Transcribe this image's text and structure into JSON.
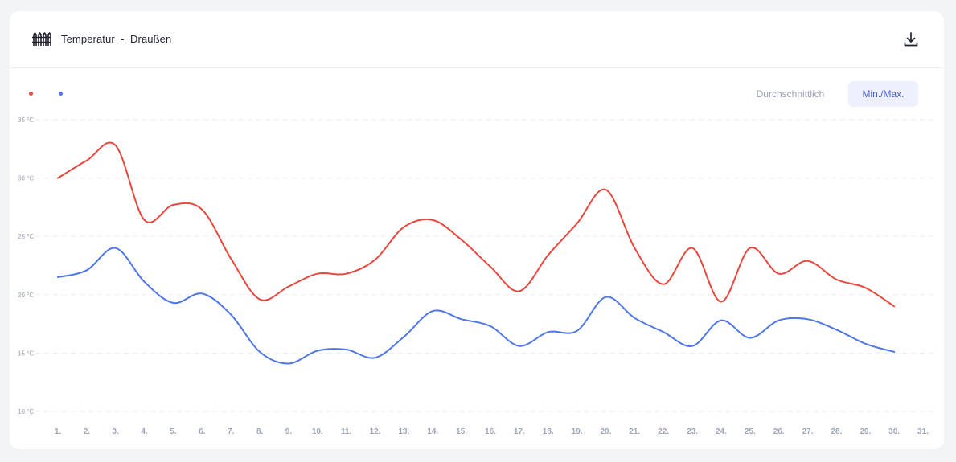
{
  "header": {
    "title": "Temperatur  -  Draußen",
    "title_icon": "fence-icon",
    "download_icon": "download-icon"
  },
  "toggle": {
    "average_label": "Durchschnittlich",
    "minmax_label": "Min./Max.",
    "active": "minmax"
  },
  "colors": {
    "max_series": "#e8473e",
    "min_series": "#4f76e6",
    "axis_text": "#a0a6bb",
    "grid": "#ebedf2"
  },
  "chart_data": {
    "type": "line",
    "y_unit": "°C",
    "ylim": [
      10,
      35
    ],
    "y_ticks": [
      35,
      30,
      25,
      20,
      15,
      10
    ],
    "y_tick_labels": [
      "35 °C",
      "30 °C",
      "25 °C",
      "20 °C",
      "15 °C",
      "10 °C"
    ],
    "categories": [
      "1.",
      "2.",
      "3.",
      "4.",
      "5.",
      "6.",
      "7.",
      "8.",
      "9.",
      "10.",
      "11.",
      "12.",
      "13.",
      "14.",
      "15.",
      "16.",
      "17.",
      "18.",
      "19.",
      "20.",
      "21.",
      "22.",
      "23.",
      "24.",
      "25.",
      "26.",
      "27.",
      "28.",
      "29.",
      "30.",
      "31."
    ],
    "grid": "horizontal dashed",
    "legend": "top-left",
    "series": [
      {
        "color": "#e8473e",
        "values": [
          30.0,
          31.5,
          32.8,
          26.4,
          27.7,
          27.3,
          23.1,
          19.6,
          20.7,
          21.8,
          21.8,
          23.0,
          25.8,
          26.4,
          24.7,
          22.4,
          20.3,
          23.4,
          26.1,
          29.0,
          24.0,
          20.9,
          24.0,
          19.4,
          24.0,
          21.8,
          22.9,
          21.3,
          20.6,
          19.0,
          null
        ]
      },
      {
        "color": "#4f76e6",
        "values": [
          21.5,
          22.1,
          24.0,
          21.1,
          19.3,
          20.1,
          18.3,
          15.1,
          14.1,
          15.2,
          15.3,
          14.6,
          16.4,
          18.6,
          17.9,
          17.3,
          15.6,
          16.8,
          16.9,
          19.8,
          18.0,
          16.8,
          15.6,
          17.8,
          16.3,
          17.8,
          17.9,
          17.0,
          15.8,
          15.1,
          null
        ]
      }
    ]
  }
}
